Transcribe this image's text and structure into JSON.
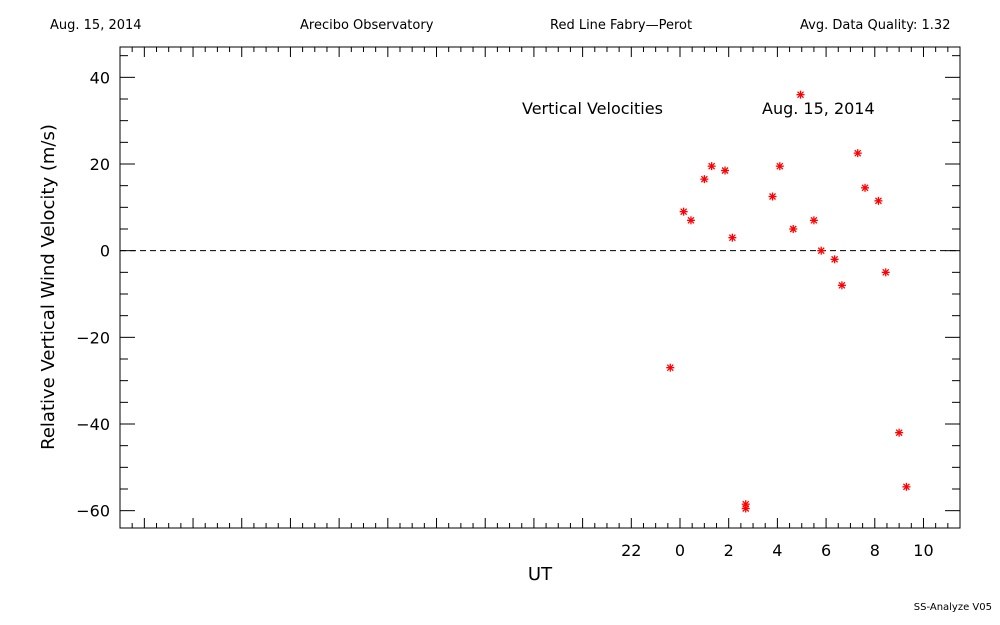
{
  "header": {
    "date": "Aug. 15, 2014",
    "observatory": "Arecibo Observatory",
    "instrument": "Red Line Fabry—Perot",
    "quality": "Avg. Data Quality: 1.32"
  },
  "footer": {
    "software": "SS-Analyze V05"
  },
  "colors": {
    "points": "#ff0000",
    "axes": "#000000"
  },
  "chart_data": {
    "type": "scatter",
    "title": "",
    "xlabel": "UT",
    "ylabel": "Relative Vertical Wind Velocity (m/s)",
    "xlim": [
      -23,
      11.5
    ],
    "ylim": [
      -64,
      47
    ],
    "xticks": [
      22,
      0,
      2,
      4,
      6,
      8,
      10
    ],
    "yticks": [
      40,
      20,
      0,
      -20,
      -40,
      -60
    ],
    "zero_line": "dashed",
    "grid": false,
    "marker": "asterisk",
    "annotations": [
      "Vertical Velocities",
      "Aug. 15, 2014"
    ],
    "series": [
      {
        "points": [
          {
            "x": -0.4,
            "y": -27
          },
          {
            "x": 0.15,
            "y": 9
          },
          {
            "x": 0.45,
            "y": 7
          },
          {
            "x": 1.0,
            "y": 16.5
          },
          {
            "x": 1.3,
            "y": 19.5
          },
          {
            "x": 1.85,
            "y": 18.5
          },
          {
            "x": 2.15,
            "y": 3
          },
          {
            "x": 2.7,
            "y": -58.5
          },
          {
            "x": 2.7,
            "y": -59.5
          },
          {
            "x": 3.8,
            "y": 12.5
          },
          {
            "x": 4.1,
            "y": 19.5
          },
          {
            "x": 4.65,
            "y": 5
          },
          {
            "x": 4.95,
            "y": 36
          },
          {
            "x": 5.5,
            "y": 7
          },
          {
            "x": 5.8,
            "y": 0
          },
          {
            "x": 6.35,
            "y": -2
          },
          {
            "x": 6.65,
            "y": -8
          },
          {
            "x": 7.3,
            "y": 22.5
          },
          {
            "x": 7.6,
            "y": 14.5
          },
          {
            "x": 8.15,
            "y": 11.5
          },
          {
            "x": 8.45,
            "y": -5
          },
          {
            "x": 9.0,
            "y": -42
          },
          {
            "x": 9.3,
            "y": -54.5
          }
        ]
      }
    ]
  }
}
